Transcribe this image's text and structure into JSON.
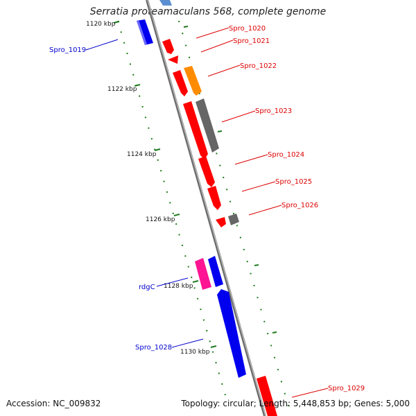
{
  "title": "Serratia proteamaculans 568, complete genome",
  "footer": {
    "accession": "Accession: NC_009832",
    "summary": "Topology: circular; Length: 5,448,853 bp; Genes: 5,000"
  },
  "colors": {
    "backbone": "#8c8c8c",
    "ticks": "#1e7a1e",
    "red_gene": "#ff0000",
    "orange_gene": "#ff8c00",
    "gray_gene": "#666666",
    "blue_gene": "#0000ee",
    "pink_gene": "#ff1493",
    "light_blue_gene": "#5b8fd0",
    "label_red": "#dd0000",
    "label_blue": "#0000cc"
  },
  "scale_labels": [
    "1120 kbp",
    "1122 kbp",
    "1124 kbp",
    "1126 kbp",
    "1128 kbp",
    "1130 kbp"
  ],
  "gene_labels": {
    "spro_1019": "Spro_1019",
    "spro_1020": "Spro_1020",
    "spro_1021": "Spro_1021",
    "spro_1022": "Spro_1022",
    "spro_1023": "Spro_1023",
    "spro_1024": "Spro_1024",
    "spro_1025": "Spro_1025",
    "spro_1026": "Spro_1026",
    "rdgc": "rdgC",
    "spro_1028": "Spro_1028",
    "spro_1029": "Spro_1029"
  }
}
